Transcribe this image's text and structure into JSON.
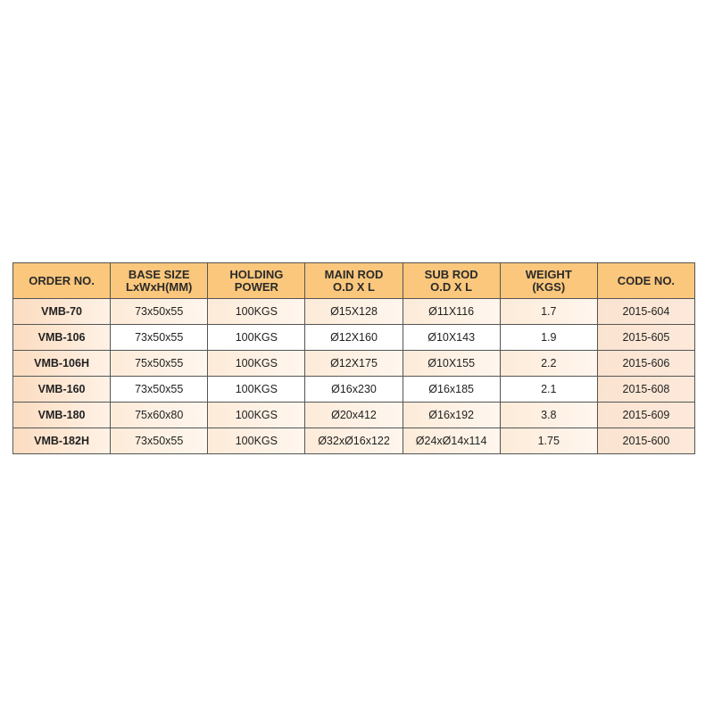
{
  "table": {
    "headers": [
      [
        "ORDER NO.",
        ""
      ],
      [
        "BASE SIZE",
        "LxWxH(MM)"
      ],
      [
        "HOLDING",
        "POWER"
      ],
      [
        "MAIN ROD",
        "O.D X L"
      ],
      [
        "SUB ROD",
        "O.D X L"
      ],
      [
        "WEIGHT",
        "(KGS)"
      ],
      [
        "CODE NO.",
        ""
      ]
    ],
    "rows": [
      [
        "VMB-70",
        "73x50x55",
        "100KGS",
        "Ø15X128",
        "Ø11X116",
        "1.7",
        "2015-604"
      ],
      [
        "VMB-106",
        "73x50x55",
        "100KGS",
        "Ø12X160",
        "Ø10X143",
        "1.9",
        "2015-605"
      ],
      [
        "VMB-106H",
        "75x50x55",
        "100KGS",
        "Ø12X175",
        "Ø10X155",
        "2.2",
        "2015-606"
      ],
      [
        "VMB-160",
        "73x50x55",
        "100KGS",
        "Ø16x230",
        "Ø16x185",
        "2.1",
        "2015-608"
      ],
      [
        "VMB-180",
        "75x60x80",
        "100KGS",
        "Ø20x412",
        "Ø16x192",
        "3.8",
        "2015-609"
      ],
      [
        "VMB-182H",
        "73x50x55",
        "100KGS",
        "Ø32xØ16x122",
        "Ø24xØ14x114",
        "1.75",
        "2015-600"
      ]
    ],
    "colors": {
      "header": "#fbc77c",
      "border": "#555555"
    }
  }
}
